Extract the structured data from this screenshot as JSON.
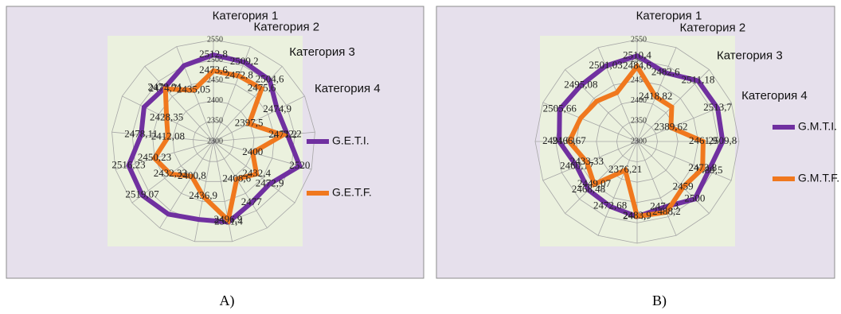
{
  "chart_data": [
    {
      "type": "radar",
      "caption": "A)",
      "categories": [
        "Категория 1",
        "Категория 2",
        "Категория 3",
        "Категория 4",
        null,
        null,
        null,
        null,
        null,
        null,
        null,
        null,
        null,
        null,
        null,
        null,
        null
      ],
      "ylim": [
        2300,
        2550
      ],
      "yticks": [
        2300,
        2350,
        2400,
        2450,
        2500,
        2550
      ],
      "grid": true,
      "series": [
        {
          "name": "G.E.T.I.",
          "color": "#7030a0",
          "values": [
            2512.8,
            2509.2,
            2504.6,
            2474.9,
            2482.2,
            2520,
            2472.9,
            2477,
            2501.4,
            2495,
            2510,
            2519.07,
            2516.23,
            2478.11,
            2490,
            2478.04,
            2500
          ],
          "value_labels": [
            "2512,8",
            "2509,2",
            "2504,6",
            "2474,9",
            "2482,2",
            "2520",
            "2472,9",
            "2477",
            "2501,4",
            null,
            null,
            "2519,07",
            "2516,23",
            "2478,11",
            null,
            "2478,04",
            null
          ]
        },
        {
          "name": "G.E.T.F.",
          "color": "#f0781e",
          "values": [
            2473.6,
            2472.8,
            2475.6,
            2397.5,
            2471.2,
            2400,
            2432.4,
            2408.6,
            2496.9,
            2436.9,
            2400.8,
            2432.33,
            2450.23,
            2412.08,
            2428.35,
            2474.71,
            2435.05
          ],
          "value_labels": [
            "2473,6",
            "2472,8",
            "2475,6",
            "2397,5",
            "2471,2",
            "2400",
            "2432,4",
            "2408,6",
            "2496,9",
            "2436,9",
            "2400,8",
            "2432,33",
            "2450,23",
            "2412,08",
            "2428,35",
            "2474,71",
            "2435,05"
          ]
        }
      ]
    },
    {
      "type": "radar",
      "caption": "B)",
      "categories": [
        "Категория 1",
        "Категория 2",
        "Категория 3",
        "Категория 4",
        null,
        null,
        null,
        null,
        null,
        null,
        null,
        null,
        null,
        null,
        null,
        null
      ],
      "ylim": [
        2300,
        2550
      ],
      "yticks": [
        2300,
        2350,
        2400,
        2450,
        2500,
        2550
      ],
      "grid": true,
      "series": [
        {
          "name": "G.M.T.I.",
          "color": "#7030a0",
          "values": [
            2510.4,
            2482.6,
            2511.18,
            2513.7,
            2509.8,
            2489.5,
            2500,
            2474.3,
            2484.7,
            2472.68,
            2468.48,
            2460.17,
            2491.01,
            2505.66,
            2495.08,
            2501.03
          ],
          "value_labels": [
            "2510,4",
            "2482,6",
            "2511,18",
            "2513,7",
            "2509,8",
            "2489,5",
            "2500",
            "2474,3",
            "2484,7",
            "2472,68",
            "2468,48",
            "2460,17",
            "2491,01",
            "2505,66",
            "2495,08",
            "2501,03"
          ]
        },
        {
          "name": "G.M.T.F.",
          "color": "#f0781e",
          "values": [
            2484.6,
            2418.82,
            2420,
            2389.62,
            2461.9,
            2473.8,
            2459,
            2488.2,
            2483.9,
            2376.21,
            2449.07,
            2433.33,
            2466.67,
            2450,
            2440,
            2430
          ],
          "value_labels": [
            "2484,6",
            "2418,82",
            null,
            "2389,62",
            "2461,9",
            "2473,8",
            "2459",
            "2488,2",
            "2483,9",
            "2376,21",
            "2449,07",
            "2433,33",
            "2466,67",
            null,
            null,
            null
          ]
        }
      ]
    }
  ]
}
